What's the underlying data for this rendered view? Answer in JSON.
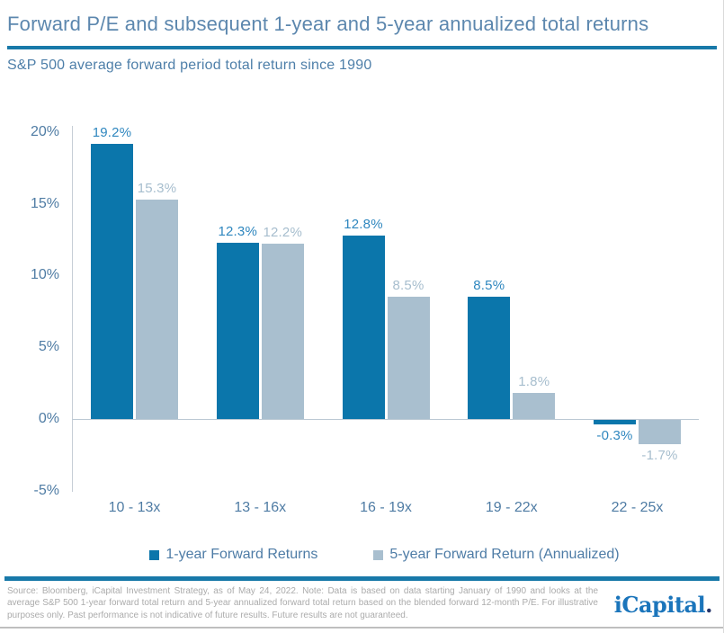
{
  "header": {
    "title": "Forward P/E and subsequent 1-year and 5-year annualized total returns",
    "subtitle": "S&P 500 average forward period total return since 1990"
  },
  "chart_data": {
    "type": "bar",
    "title": "Forward P/E and subsequent 1-year and 5-year annualized total returns",
    "subtitle": "S&P 500 average forward period total return since 1990",
    "categories": [
      "10 - 13x",
      "13 - 16x",
      "16 - 19x",
      "19 - 22x",
      "22 - 25x"
    ],
    "series": [
      {
        "name": "1-year Forward Returns",
        "values": [
          19.2,
          12.3,
          12.8,
          8.5,
          -0.3
        ],
        "labels": [
          "19.2%",
          "12.3%",
          "12.8%",
          "8.5%",
          "-0.3%"
        ],
        "color": "#0B76AB",
        "label_color": "#2F87BF"
      },
      {
        "name": "5-year Forward Return (Annualized)",
        "values": [
          15.3,
          12.2,
          8.5,
          1.8,
          -1.7
        ],
        "labels": [
          "15.3%",
          "12.2%",
          "8.5%",
          "1.8%",
          "-1.7%"
        ],
        "color": "#A9BFCF",
        "label_color": "#A7BECE"
      }
    ],
    "y_ticks": [
      "20%",
      "15%",
      "10%",
      "5%",
      "0%",
      "-5%"
    ],
    "y_tick_values": [
      20,
      15,
      10,
      5,
      0,
      -5
    ],
    "ylim": [
      -5,
      20
    ],
    "grid": false,
    "legend_position": "bottom",
    "value_suffix": "%"
  },
  "footer": {
    "note": "Source: Bloomberg, iCapital Investment Strategy, as of May 24, 2022. Note: Data is based on data starting January of 1990 and looks at the average S&P 500 1-year forward total return and 5-year annualized forward total return based on the blended forward 12-month P/E. For illustrative purposes only. Past performance is not indicative of future results. Future results are not guaranteed.",
    "logo_text": "iCapital",
    "logo_dot": "."
  },
  "colors": {
    "accent_rule": "#1879A9",
    "title_text": "#5C87AE",
    "axis_text": "#4F7CA4",
    "series1": "#0B76AB",
    "series2": "#A9BFCF",
    "logo_blue": "#1B75BB",
    "logo_dot_navy": "#27366B"
  }
}
